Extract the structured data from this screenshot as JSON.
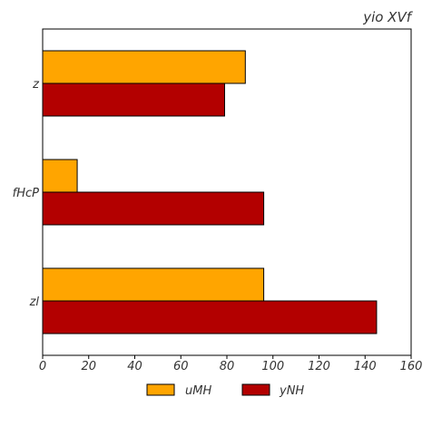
{
  "chart_data": {
    "type": "bar",
    "orientation": "horizontal",
    "title": "yio XVf",
    "categories": [
      "z",
      "fHcP",
      "zl"
    ],
    "series": [
      {
        "name": "uMH",
        "values": [
          88,
          15,
          96
        ],
        "color": "#FFA500"
      },
      {
        "name": "yNH",
        "values": [
          79,
          96,
          145
        ],
        "color": "#B30000"
      }
    ],
    "xlim": [
      0,
      160
    ],
    "xticks": [
      0,
      20,
      40,
      60,
      80,
      100,
      120,
      140,
      160
    ],
    "grid": false,
    "legend_position": "bottom-center"
  }
}
